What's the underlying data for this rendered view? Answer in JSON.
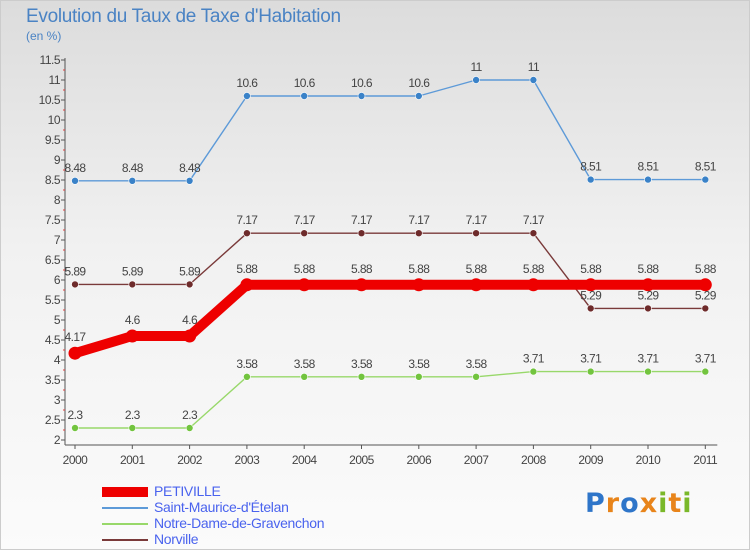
{
  "title": "Evolution du Taux de Taxe d'Habitation",
  "unit_label": "(en %)",
  "logo_text": "Proxiti",
  "colors": {
    "title": "#4a83c4",
    "legend_text": "#4a63ee",
    "logo_letters": [
      "#2e75c9",
      "#e8841a",
      "#2e75c9",
      "#e8841a",
      "#7ab829",
      "#e8841a",
      "#7ab829"
    ]
  },
  "chart_data": {
    "type": "line",
    "title": "Evolution du Taux de Taxe d'Habitation",
    "ylabel": "(en %)",
    "xlabel": "",
    "x": [
      "2000",
      "2001",
      "2002",
      "2003",
      "2004",
      "2005",
      "2006",
      "2007",
      "2008",
      "2009",
      "2010",
      "2011"
    ],
    "ylim": [
      2,
      11.5
    ],
    "yticks": [
      2,
      2.5,
      3,
      3.5,
      4,
      4.5,
      5,
      5.5,
      6,
      6.5,
      7,
      7.5,
      8,
      8.5,
      9,
      9.5,
      10,
      10.5,
      11,
      11.5
    ],
    "ytick_labels": [
      "2",
      "2.5",
      "3",
      "3.5",
      "4",
      "4.5",
      "5",
      "5.5",
      "6",
      "6.5",
      "7",
      "7.5",
      "8",
      "8.5",
      "9",
      "9.5",
      "10",
      "10.5",
      "11",
      "11.5"
    ],
    "grid": false,
    "legend_position": "bottom-left",
    "series": [
      {
        "name": "PETIVILLE",
        "color": "#ee0000",
        "emphasis": "thick",
        "values": [
          4.17,
          4.6,
          4.6,
          5.88,
          5.88,
          5.88,
          5.88,
          5.88,
          5.88,
          5.88,
          5.88,
          5.88
        ],
        "labels": [
          "4.17",
          "4.6",
          "4.6",
          "5.88",
          "5.88",
          "5.88",
          "5.88",
          "5.88",
          "5.88",
          "5.88",
          "5.88",
          "5.88"
        ]
      },
      {
        "name": "Saint-Maurice-d'Ételan",
        "color": "#5d9ad8",
        "marker_color": "#3a82c8",
        "values": [
          8.48,
          8.48,
          8.48,
          10.6,
          10.6,
          10.6,
          10.6,
          11,
          11,
          8.51,
          8.51,
          8.51
        ],
        "labels": [
          "8.48",
          "8.48",
          "8.48",
          "10.6",
          "10.6",
          "10.6",
          "10.6",
          "11",
          "11",
          "8.51",
          "8.51",
          "8.51"
        ]
      },
      {
        "name": "Notre-Dame-de-Gravenchon",
        "color": "#98d86a",
        "marker_color": "#72c43e",
        "values": [
          2.3,
          2.3,
          2.3,
          3.58,
          3.58,
          3.58,
          3.58,
          3.58,
          3.71,
          3.71,
          3.71,
          3.71
        ],
        "labels": [
          "2.3",
          "2.3",
          "2.3",
          "3.58",
          "3.58",
          "3.58",
          "3.58",
          "3.58",
          "3.71",
          "3.71",
          "3.71",
          "3.71"
        ]
      },
      {
        "name": "Norville",
        "color": "#7a3a3a",
        "marker_color": "#6e2b2b",
        "values": [
          5.89,
          5.89,
          5.89,
          7.17,
          7.17,
          7.17,
          7.17,
          7.17,
          7.17,
          5.29,
          5.29,
          5.29
        ],
        "labels": [
          "5.89",
          "5.89",
          "5.89",
          "7.17",
          "7.17",
          "7.17",
          "7.17",
          "7.17",
          "7.17",
          "5.29",
          "5.29",
          "5.29"
        ]
      }
    ]
  }
}
